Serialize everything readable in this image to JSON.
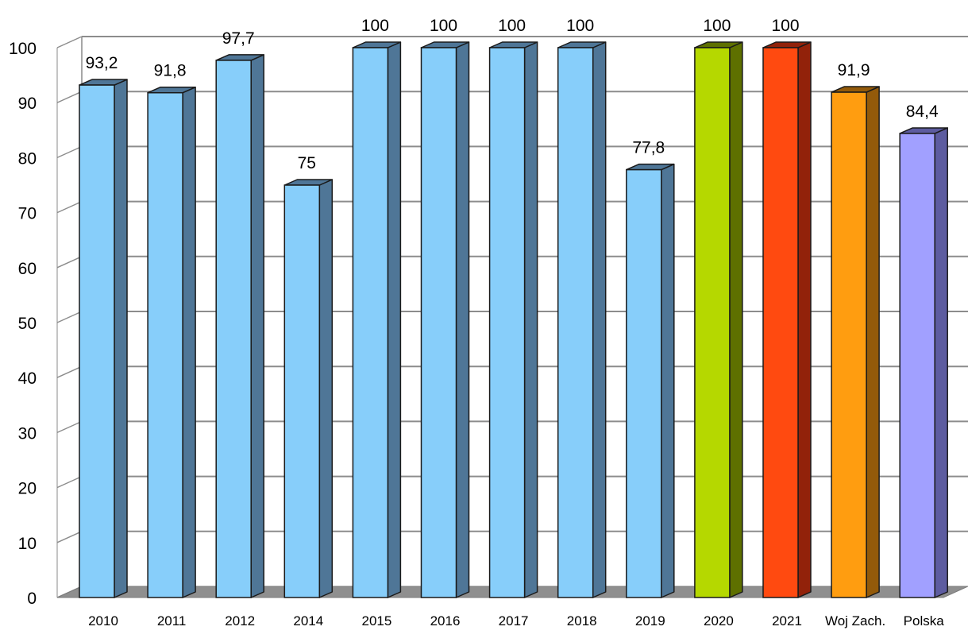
{
  "chart_data": {
    "type": "bar",
    "title": "",
    "xlabel": "",
    "ylabel": "",
    "categories": [
      "2010",
      "2011",
      "2012",
      "2014",
      "2015",
      "2016",
      "2017",
      "2018",
      "2019",
      "2020",
      "2021",
      "Woj Zach.",
      "Polska"
    ],
    "values": [
      93.2,
      91.8,
      97.7,
      75,
      100,
      100,
      100,
      100,
      77.8,
      100,
      100,
      91.9,
      84.4
    ],
    "value_labels": [
      "93,2",
      "91,8",
      "97,7",
      "75",
      "100",
      "100",
      "100",
      "100",
      "77,8",
      "100",
      "100",
      "91,9",
      "84,4"
    ],
    "bar_colors": [
      "#87CEFA",
      "#87CEFA",
      "#87CEFA",
      "#87CEFA",
      "#87CEFA",
      "#87CEFA",
      "#87CEFA",
      "#87CEFA",
      "#87CEFA",
      "#B5D800",
      "#FF4A10",
      "#FF9D10",
      "#A1A0FF"
    ],
    "side_colors": [
      "#4F7697",
      "#4F7697",
      "#4F7697",
      "#4F7697",
      "#4F7697",
      "#4F7697",
      "#4F7697",
      "#4F7697",
      "#4F7697",
      "#5E7000",
      "#92220A",
      "#935A0A",
      "#5D5CA0"
    ],
    "yticks": [
      "0",
      "10",
      "20",
      "30",
      "40",
      "50",
      "60",
      "70",
      "80",
      "90",
      "100"
    ],
    "ylim": [
      0,
      100
    ],
    "grid": true,
    "legend": "none"
  }
}
